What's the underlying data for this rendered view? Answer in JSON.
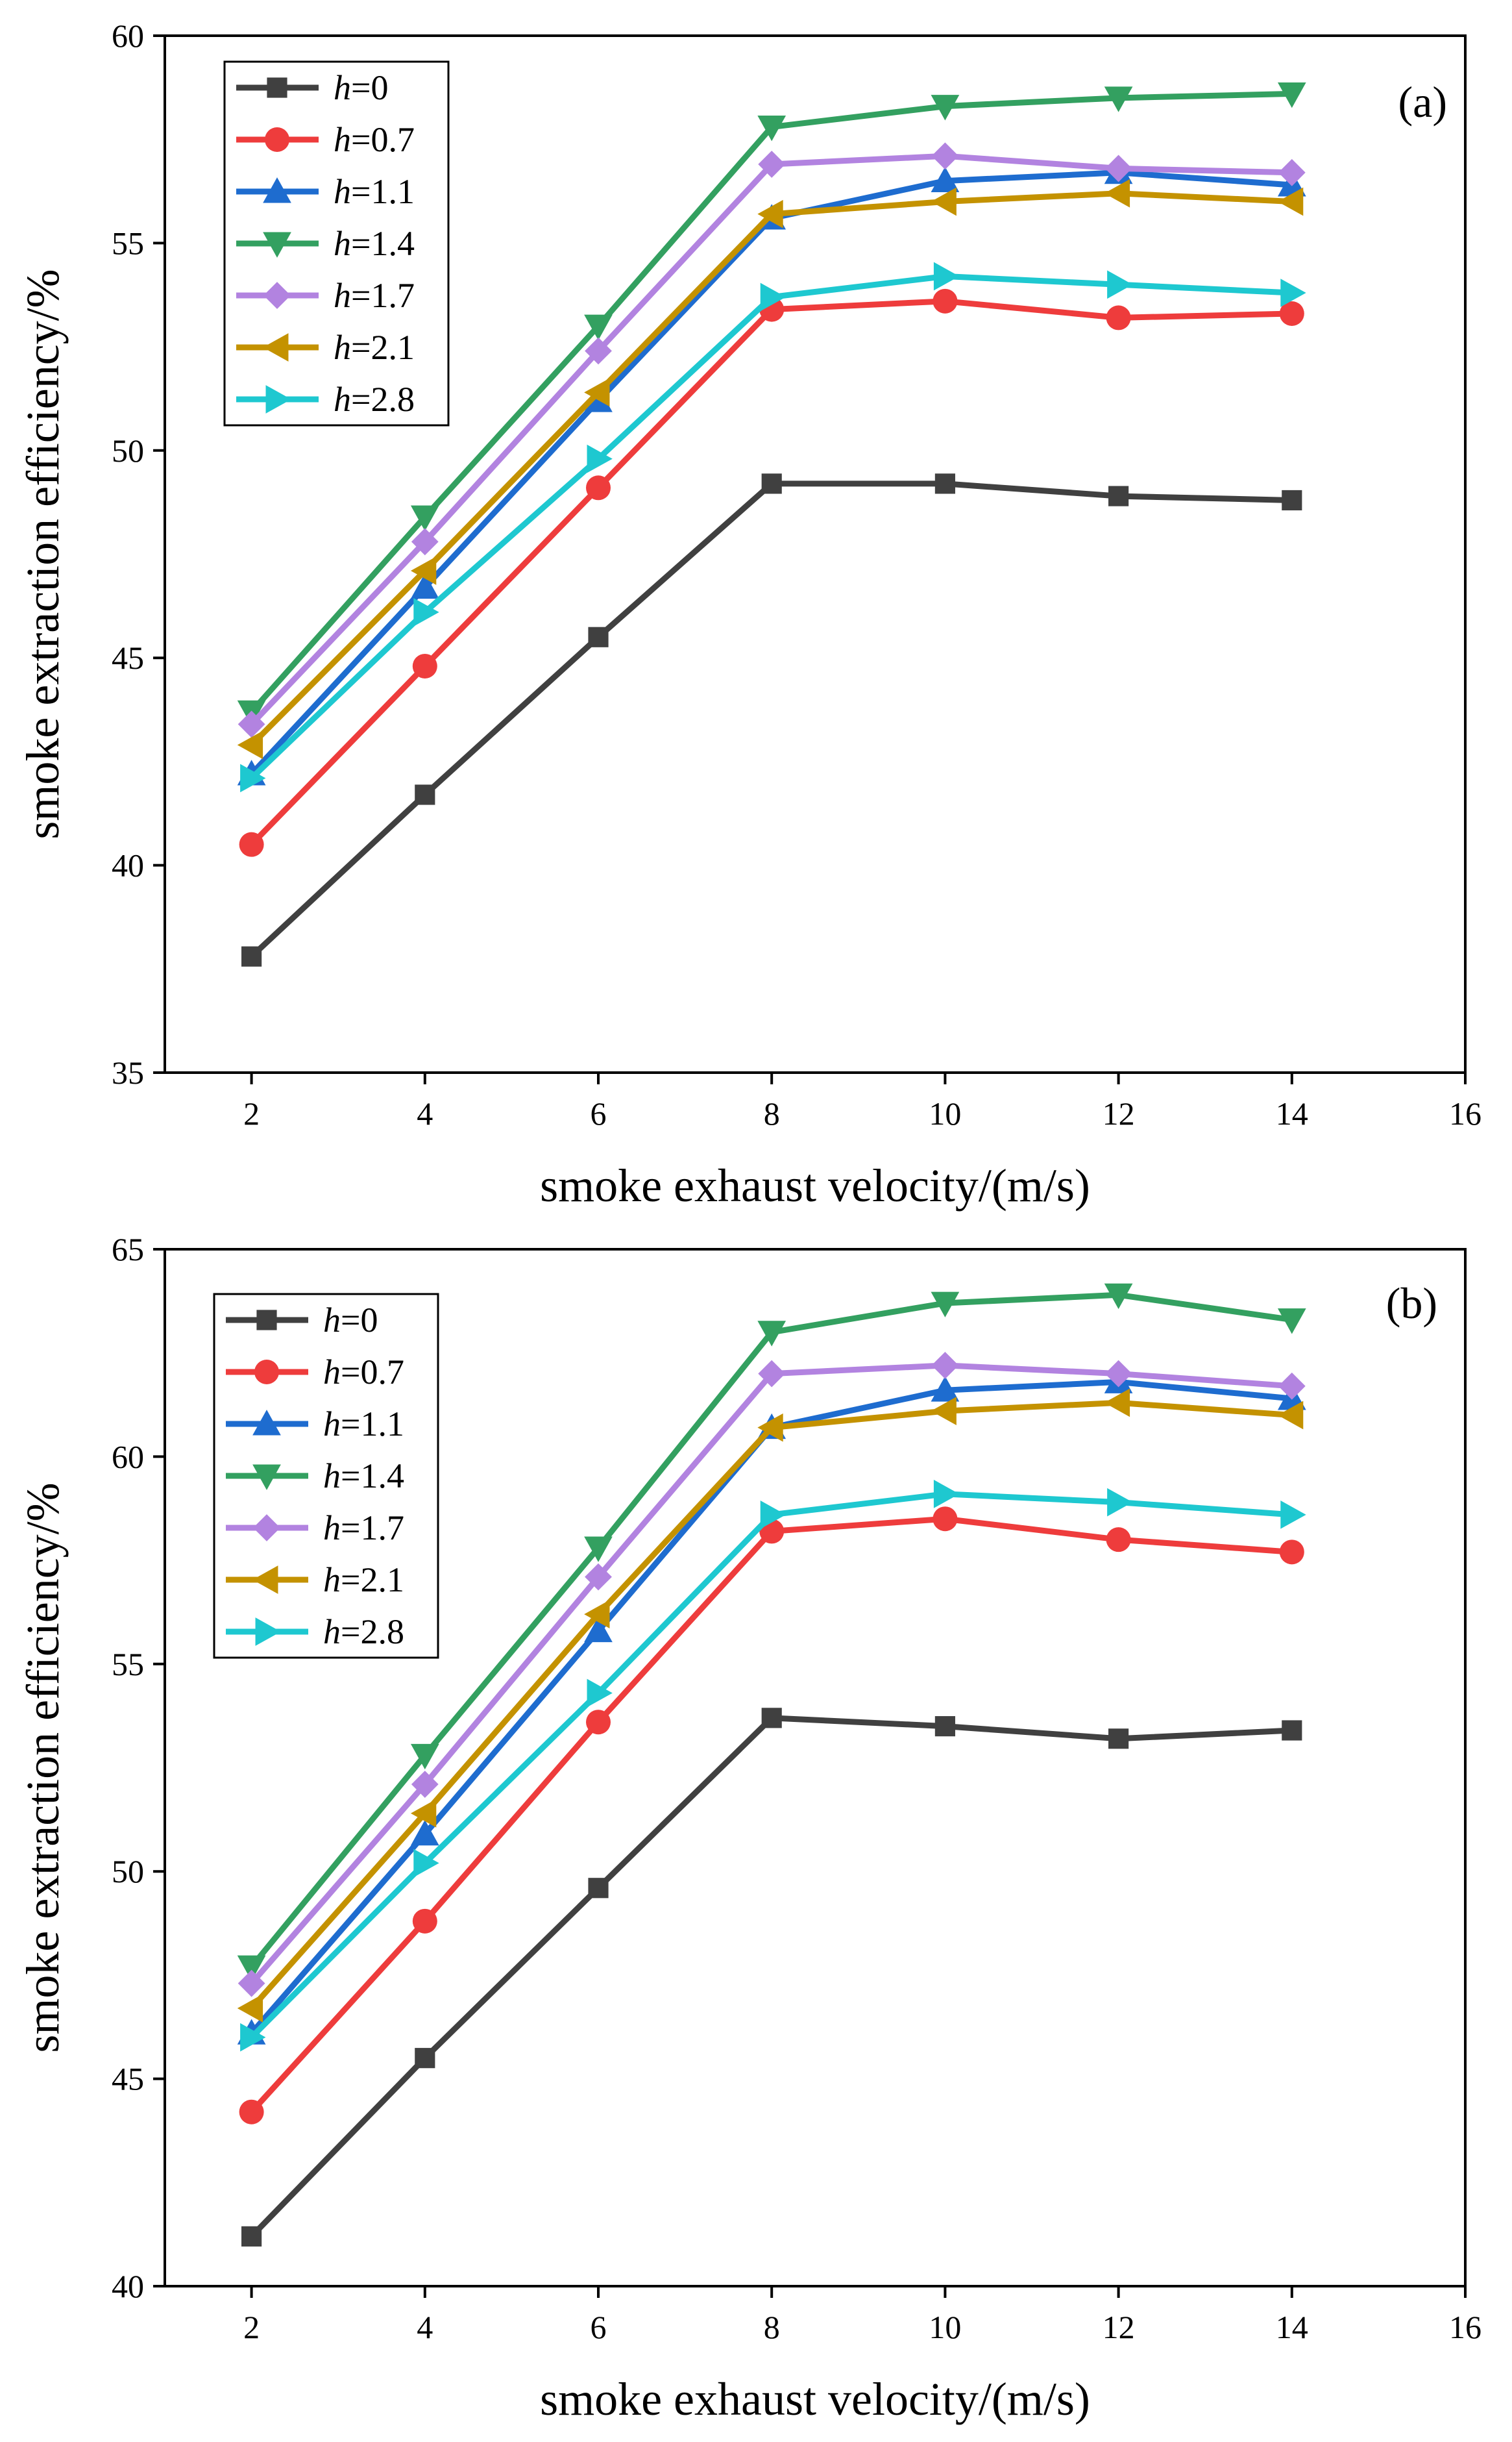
{
  "colors": {
    "h=0": "#404040",
    "h=0.7": "#ee3c3c",
    "h=1.1": "#1e6ccf",
    "h=1.4": "#33a060",
    "h=1.7": "#b283e0",
    "h=2.1": "#c49200",
    "h=2.8": "#1ec8d0"
  },
  "chart_data": [
    {
      "type": "line",
      "panel_label": "(a)",
      "xlabel": "smoke exhaust velocity/(m/s)",
      "ylabel": "smoke extraction efficiency/%",
      "xlim": [
        1,
        16
      ],
      "ylim": [
        35,
        60
      ],
      "xticks": [
        2,
        4,
        6,
        8,
        10,
        12,
        14,
        16
      ],
      "yticks": [
        35,
        40,
        45,
        50,
        55,
        60
      ],
      "legend_position": "top-left",
      "grid": false,
      "x": [
        2,
        4,
        6,
        8,
        10,
        12,
        14
      ],
      "series": [
        {
          "name": "h=0",
          "name_var": "h",
          "name_val": "=0",
          "marker": "square",
          "values": [
            37.8,
            41.7,
            45.5,
            49.2,
            49.2,
            48.9,
            48.8
          ]
        },
        {
          "name": "h=0.7",
          "name_var": "h",
          "name_val": "=0.7",
          "marker": "circle",
          "values": [
            40.5,
            44.8,
            49.1,
            53.4,
            53.6,
            53.2,
            53.3
          ]
        },
        {
          "name": "h=1.1",
          "name_var": "h",
          "name_val": "=1.1",
          "marker": "triangle-up",
          "values": [
            42.2,
            46.7,
            51.2,
            55.6,
            56.5,
            56.7,
            56.4
          ]
        },
        {
          "name": "h=1.4",
          "name_var": "h",
          "name_val": "=1.4",
          "marker": "triangle-down",
          "values": [
            43.7,
            48.4,
            53.0,
            57.8,
            58.3,
            58.5,
            58.6
          ]
        },
        {
          "name": "h=1.7",
          "name_var": "h",
          "name_val": "=1.7",
          "marker": "diamond",
          "values": [
            43.4,
            47.8,
            52.4,
            56.9,
            57.1,
            56.8,
            56.7
          ]
        },
        {
          "name": "h=2.1",
          "name_var": "h",
          "name_val": "=2.1",
          "marker": "triangle-left",
          "values": [
            42.9,
            47.1,
            51.4,
            55.7,
            56.0,
            56.2,
            56.0
          ]
        },
        {
          "name": "h=2.8",
          "name_var": "h",
          "name_val": "=2.8",
          "marker": "triangle-right",
          "values": [
            42.1,
            46.1,
            49.8,
            53.7,
            54.2,
            54.0,
            53.8
          ]
        }
      ]
    },
    {
      "type": "line",
      "panel_label": "(b)",
      "xlabel": "smoke exhaust velocity/(m/s)",
      "ylabel": "smoke extraction efficiency/%",
      "xlim": [
        1,
        16
      ],
      "ylim": [
        40,
        65
      ],
      "xticks": [
        2,
        4,
        6,
        8,
        10,
        12,
        14,
        16
      ],
      "yticks": [
        40,
        45,
        50,
        55,
        60,
        65
      ],
      "legend_position": "top-left",
      "grid": false,
      "x": [
        2,
        4,
        6,
        8,
        10,
        12,
        14
      ],
      "series": [
        {
          "name": "h=0",
          "name_var": "h",
          "name_val": "=0",
          "marker": "square",
          "values": [
            41.2,
            45.5,
            49.6,
            53.7,
            53.5,
            53.2,
            53.4
          ]
        },
        {
          "name": "h=0.7",
          "name_var": "h",
          "name_val": "=0.7",
          "marker": "circle",
          "values": [
            44.2,
            48.8,
            53.6,
            58.2,
            58.5,
            58.0,
            57.7
          ]
        },
        {
          "name": "h=1.1",
          "name_var": "h",
          "name_val": "=1.1",
          "marker": "triangle-up",
          "values": [
            46.1,
            50.9,
            55.8,
            60.7,
            61.6,
            61.8,
            61.4
          ]
        },
        {
          "name": "h=1.4",
          "name_var": "h",
          "name_val": "=1.4",
          "marker": "triangle-down",
          "values": [
            47.7,
            52.8,
            57.8,
            63.0,
            63.7,
            63.9,
            63.3
          ]
        },
        {
          "name": "h=1.7",
          "name_var": "h",
          "name_val": "=1.7",
          "marker": "diamond",
          "values": [
            47.3,
            52.1,
            57.1,
            62.0,
            62.2,
            62.0,
            61.7
          ]
        },
        {
          "name": "h=2.1",
          "name_var": "h",
          "name_val": "=2.1",
          "marker": "triangle-left",
          "values": [
            46.7,
            51.4,
            56.2,
            60.7,
            61.1,
            61.3,
            61.0
          ]
        },
        {
          "name": "h=2.8",
          "name_var": "h",
          "name_val": "=2.8",
          "marker": "triangle-right",
          "values": [
            46.0,
            50.2,
            54.3,
            58.6,
            59.1,
            58.9,
            58.6
          ]
        }
      ]
    }
  ]
}
